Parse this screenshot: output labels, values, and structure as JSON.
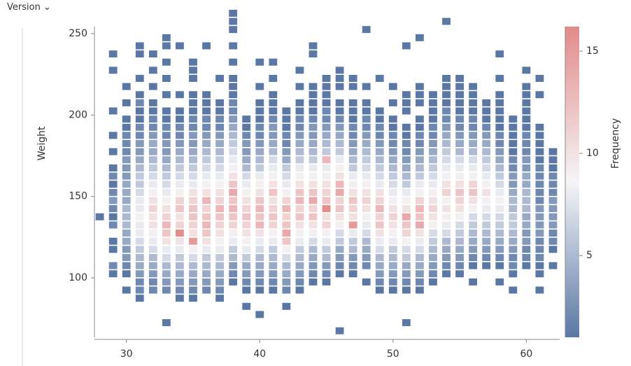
{
  "header": {
    "menu": "Version ⌄"
  },
  "chart_data": {
    "type": "heatmap",
    "y_label": "Weight",
    "colorbar_label": "Frequency",
    "xlim": [
      27.6,
      62.5
    ],
    "xticks": [
      30,
      40,
      50,
      60
    ],
    "ylim": [
      63.5,
      254.3
    ],
    "yticks": [
      100,
      150,
      200,
      250
    ],
    "zlim": [
      1,
      16.2
    ],
    "zticks": [
      5,
      10,
      15
    ],
    "colormap": [
      "#5b77a4",
      "#f5f5f7",
      "#e38a8a"
    ],
    "ybin_width": 5,
    "columns": [
      {
        "x": 28,
        "y0": 135,
        "counts": [
          1
        ]
      },
      {
        "x": 29,
        "y0": 100,
        "counts": [
          1,
          2,
          null,
          1,
          1,
          null,
          2,
          1,
          2,
          3,
          2,
          1,
          2,
          1,
          null,
          1,
          null,
          1,
          null,
          null,
          1,
          null,
          null,
          null,
          null,
          1,
          null,
          1
        ]
      },
      {
        "x": 30,
        "y0": 90,
        "counts": [
          1,
          null,
          1,
          2,
          3,
          3,
          4,
          4,
          5,
          5,
          5,
          4,
          4,
          4,
          3,
          3,
          3,
          2,
          2,
          2,
          1,
          1,
          null,
          1,
          null,
          1
        ]
      },
      {
        "x": 31,
        "y0": 85,
        "counts": [
          1,
          2,
          2,
          3,
          4,
          5,
          6,
          7,
          8,
          8,
          9,
          8,
          8,
          7,
          6,
          6,
          5,
          4,
          3,
          3,
          2,
          2,
          1,
          1,
          2,
          1,
          null,
          1,
          null,
          null,
          1,
          1
        ]
      },
      {
        "x": 32,
        "y0": 90,
        "counts": [
          2,
          2,
          3,
          4,
          5,
          7,
          8,
          9,
          10,
          10,
          11,
          10,
          9,
          8,
          7,
          6,
          5,
          4,
          4,
          3,
          2,
          2,
          1,
          1,
          null,
          1,
          null,
          1,
          null,
          1
        ]
      },
      {
        "x": 33,
        "y0": 70,
        "counts": [
          1,
          null,
          null,
          null,
          2,
          3,
          4,
          5,
          7,
          8,
          10,
          12,
          13,
          11,
          10,
          9,
          8,
          7,
          6,
          5,
          4,
          3,
          3,
          2,
          2,
          1,
          1,
          null,
          1,
          null,
          1,
          null,
          1,
          null,
          1,
          1
        ]
      },
      {
        "x": 34,
        "y0": 85,
        "counts": [
          1,
          2,
          3,
          4,
          5,
          6,
          8,
          10,
          16,
          11,
          10,
          12,
          11,
          9,
          8,
          7,
          6,
          5,
          4,
          3,
          2,
          2,
          1,
          1,
          null,
          1,
          null,
          null,
          null,
          null,
          null,
          1
        ]
      },
      {
        "x": 35,
        "y0": 85,
        "counts": [
          1,
          2,
          3,
          4,
          5,
          7,
          9,
          15,
          10,
          11,
          12,
          12,
          11,
          10,
          8,
          7,
          6,
          5,
          4,
          3,
          3,
          2,
          2,
          1,
          1,
          1,
          null,
          1,
          1,
          1
        ]
      },
      {
        "x": 36,
        "y0": 90,
        "counts": [
          2,
          3,
          4,
          5,
          6,
          8,
          10,
          12,
          13,
          12,
          11,
          13,
          10,
          9,
          8,
          7,
          6,
          5,
          4,
          3,
          2,
          2,
          1,
          1,
          1,
          null,
          null,
          null,
          null,
          null,
          1
        ]
      },
      {
        "x": 37,
        "y0": 85,
        "counts": [
          1,
          2,
          3,
          4,
          5,
          6,
          8,
          9,
          10,
          11,
          12,
          13,
          11,
          10,
          9,
          8,
          7,
          6,
          5,
          4,
          3,
          2,
          2,
          1,
          1,
          null,
          null,
          1
        ]
      },
      {
        "x": 38,
        "y0": 95,
        "counts": [
          1,
          2,
          3,
          5,
          6,
          8,
          9,
          11,
          12,
          13,
          12,
          14,
          12,
          10,
          9,
          8,
          7,
          6,
          5,
          4,
          3,
          2,
          2,
          1,
          1,
          1,
          null,
          1,
          null,
          1,
          null,
          1,
          1,
          1
        ]
      },
      {
        "x": 39,
        "y0": 80,
        "counts": [
          1,
          null,
          1,
          2,
          3,
          4,
          6,
          8,
          9,
          10,
          11,
          12,
          11,
          10,
          9,
          8,
          7,
          5,
          4,
          3,
          3,
          2,
          1,
          1
        ]
      },
      {
        "x": 40,
        "y0": 75,
        "counts": [
          1,
          null,
          null,
          1,
          2,
          3,
          4,
          5,
          7,
          8,
          10,
          13,
          12,
          13,
          12,
          10,
          9,
          8,
          6,
          5,
          4,
          3,
          2,
          2,
          1,
          1,
          1,
          null,
          1,
          null,
          null,
          1
        ]
      },
      {
        "x": 41,
        "y0": 90,
        "counts": [
          1,
          2,
          3,
          4,
          5,
          6,
          8,
          9,
          11,
          12,
          11,
          10,
          12,
          10,
          9,
          8,
          7,
          5,
          4,
          3,
          3,
          2,
          1,
          1,
          1,
          null,
          1,
          null,
          1
        ]
      },
      {
        "x": 42,
        "y0": 80,
        "counts": [
          1,
          null,
          2,
          3,
          4,
          5,
          7,
          9,
          12,
          14,
          12,
          11,
          13,
          11,
          9,
          8,
          7,
          6,
          4,
          3,
          2,
          2,
          1,
          1,
          1
        ]
      },
      {
        "x": 43,
        "y0": 90,
        "counts": [
          1,
          2,
          3,
          4,
          5,
          6,
          8,
          9,
          10,
          12,
          11,
          13,
          12,
          10,
          9,
          8,
          6,
          5,
          4,
          3,
          2,
          2,
          1,
          1,
          null,
          1,
          null,
          1
        ]
      },
      {
        "x": 44,
        "y0": 95,
        "counts": [
          1,
          2,
          3,
          4,
          5,
          7,
          9,
          10,
          12,
          11,
          14,
          12,
          10,
          9,
          8,
          6,
          5,
          4,
          3,
          3,
          2,
          1,
          1,
          1,
          1,
          null,
          null,
          null,
          1,
          1
        ]
      },
      {
        "x": 45,
        "y0": 95,
        "counts": [
          1,
          2,
          3,
          5,
          6,
          8,
          9,
          11,
          10,
          16,
          12,
          11,
          10,
          9,
          8,
          13,
          6,
          5,
          4,
          3,
          2,
          2,
          1,
          1,
          1,
          1
        ]
      },
      {
        "x": 46,
        "y0": 65,
        "counts": [
          1,
          null,
          null,
          null,
          null,
          null,
          null,
          1,
          2,
          3,
          4,
          6,
          7,
          9,
          10,
          12,
          11,
          14,
          13,
          10,
          9,
          8,
          6,
          5,
          4,
          3,
          2,
          1,
          1,
          null,
          1,
          1,
          1
        ]
      },
      {
        "x": 47,
        "y0": 100,
        "counts": [
          1,
          2,
          3,
          5,
          6,
          8,
          15,
          10,
          11,
          12,
          10,
          9,
          8,
          6,
          5,
          4,
          3,
          2,
          2,
          1,
          1,
          1,
          null,
          1,
          1
        ]
      },
      {
        "x": 48,
        "y0": 95,
        "counts": [
          1,
          null,
          2,
          3,
          4,
          5,
          7,
          8,
          9,
          10,
          11,
          10,
          9,
          8,
          7,
          6,
          5,
          4,
          3,
          2,
          2,
          1,
          1,
          null,
          1,
          null,
          null,
          null,
          null,
          null,
          null,
          1
        ]
      },
      {
        "x": 49,
        "y0": 90,
        "counts": [
          1,
          2,
          3,
          4,
          5,
          7,
          8,
          10,
          12,
          11,
          13,
          11,
          10,
          8,
          7,
          6,
          5,
          4,
          3,
          2,
          2,
          1,
          1,
          null,
          null,
          null,
          1
        ]
      },
      {
        "x": 50,
        "y0": 90,
        "counts": [
          1,
          2,
          3,
          4,
          5,
          6,
          8,
          9,
          10,
          11,
          10,
          9,
          8,
          7,
          6,
          5,
          4,
          3,
          2,
          2,
          1,
          1,
          null,
          1,
          null,
          1
        ]
      },
      {
        "x": 51,
        "y0": 70,
        "counts": [
          1,
          null,
          null,
          null,
          1,
          2,
          3,
          4,
          6,
          7,
          9,
          11,
          12,
          14,
          10,
          9,
          8,
          6,
          5,
          4,
          3,
          2,
          2,
          1,
          1,
          null,
          1,
          1,
          1,
          null,
          null,
          null,
          null,
          null,
          1
        ]
      },
      {
        "x": 52,
        "y0": 90,
        "counts": [
          1,
          2,
          3,
          4,
          5,
          7,
          8,
          10,
          14,
          12,
          13,
          11,
          9,
          8,
          6,
          5,
          4,
          3,
          2,
          2,
          1,
          1,
          null,
          1,
          1,
          1,
          null,
          null,
          null,
          null,
          null,
          1
        ]
      },
      {
        "x": 53,
        "y0": 95,
        "counts": [
          1,
          2,
          3,
          4,
          5,
          6,
          7,
          9,
          10,
          11,
          10,
          9,
          8,
          7,
          6,
          5,
          4,
          3,
          2,
          2,
          1,
          1,
          1,
          1
        ]
      },
      {
        "x": 54,
        "y0": 100,
        "counts": [
          1,
          2,
          3,
          4,
          5,
          7,
          8,
          9,
          10,
          9,
          11,
          10,
          9,
          8,
          7,
          6,
          5,
          4,
          3,
          2,
          2,
          1,
          1,
          1,
          1,
          null,
          null,
          null,
          null,
          null,
          null,
          1
        ]
      },
      {
        "x": 55,
        "y0": 100,
        "counts": [
          1,
          2,
          3,
          4,
          5,
          6,
          7,
          9,
          10,
          11,
          12,
          10,
          9,
          8,
          7,
          5,
          4,
          3,
          2,
          2,
          1,
          1,
          1,
          1,
          1
        ]
      },
      {
        "x": 56,
        "y0": 95,
        "counts": [
          1,
          null,
          1,
          2,
          3,
          4,
          5,
          6,
          7,
          9,
          10,
          12,
          11,
          9,
          8,
          7,
          5,
          4,
          3,
          2,
          2,
          1,
          1,
          1,
          1
        ]
      },
      {
        "x": 57,
        "y0": 105,
        "counts": [
          1,
          2,
          3,
          4,
          5,
          6,
          7,
          8,
          9,
          10,
          9,
          8,
          7,
          6,
          5,
          4,
          3,
          2,
          1,
          1,
          1
        ]
      },
      {
        "x": 58,
        "y0": 95,
        "counts": [
          1,
          null,
          1,
          2,
          3,
          4,
          5,
          6,
          7,
          8,
          9,
          8,
          7,
          6,
          5,
          4,
          3,
          2,
          2,
          1,
          1,
          1,
          1,
          1,
          null,
          1,
          null,
          null,
          1
        ]
      },
      {
        "x": 59,
        "y0": 90,
        "counts": [
          1,
          null,
          1,
          2,
          2,
          3,
          4,
          5,
          6,
          6,
          5,
          5,
          4,
          3,
          3,
          2,
          2,
          1,
          1,
          1,
          1,
          1
        ]
      },
      {
        "x": 60,
        "y0": 105,
        "counts": [
          1,
          2,
          2,
          3,
          3,
          4,
          4,
          5,
          5,
          5,
          4,
          4,
          3,
          3,
          2,
          2,
          2,
          1,
          1,
          1,
          1,
          1,
          1,
          null,
          1
        ]
      },
      {
        "x": 61,
        "y0": 90,
        "counts": [
          1,
          null,
          1,
          1,
          2,
          2,
          2,
          3,
          3,
          3,
          3,
          2,
          2,
          2,
          2,
          2,
          1,
          1,
          1,
          1,
          1,
          null,
          null,
          null,
          1,
          null,
          1
        ]
      },
      {
        "x": 62,
        "y0": 105,
        "counts": [
          1,
          null,
          1,
          2,
          2,
          3,
          3,
          3,
          3,
          2,
          2,
          2,
          1,
          1,
          1
        ]
      }
    ]
  }
}
